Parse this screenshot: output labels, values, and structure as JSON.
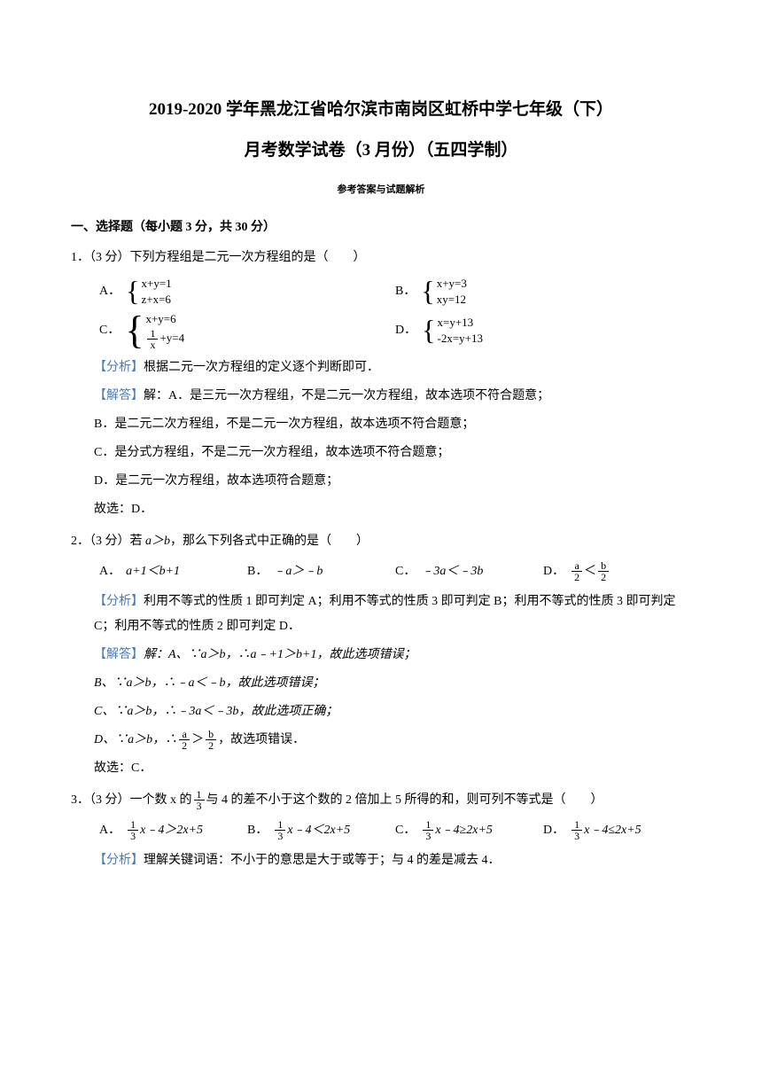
{
  "title": {
    "line1": "2019-2020 学年黑龙江省哈尔滨市南岗区虹桥中学七年级（下）",
    "line2": "月考数学试卷（3 月份）（五四学制）",
    "subtitle": "参考答案与试题解析"
  },
  "section1": {
    "header": "一、选择题（每小题 3 分，共 30 分）"
  },
  "q1": {
    "stem": "1．（3 分）下列方程组是二元一次方程组的是（　　）",
    "optA_label": "A．",
    "optA_eq1": "x+y=1",
    "optA_eq2": "z+x=6",
    "optB_label": "B．",
    "optB_eq1": "x+y=3",
    "optB_eq2": "xy=12",
    "optC_label": "C．",
    "optC_eq1": "x+y=6",
    "optC_eq2_suffix": "+y=4",
    "optD_label": "D．",
    "optD_eq1": "x=y+13",
    "optD_eq2": "-2x=y+13",
    "analysis_label": "【分析】",
    "analysis_text": "根据二元一次方程组的定义逐个判断即可．",
    "solve_label": "【解答】",
    "solve_text": "解：A．是三元一次方程组，不是二元一次方程组，故本选项不符合题意；",
    "line_b": "B．是二元二次方程组，不是二元一次方程组，故本选项不符合题意；",
    "line_c": "C．是分式方程组，不是二元一次方程组，故本选项不符合题意；",
    "line_d": "D．是二元一次方程组，故本选项符合题意；",
    "conclusion": "故选：D．"
  },
  "q2": {
    "stem_prefix": "2．（3 分）若 ",
    "stem_cond": "a＞b",
    "stem_suffix": "，那么下列各式中正确的是（　　）",
    "optA_label": "A．",
    "optA_text": "a+1＜b+1",
    "optB_label": "B．",
    "optB_text": "﹣a＞﹣b",
    "optC_label": "C．",
    "optC_text": "﹣3a＜﹣3b",
    "optD_label": "D．",
    "analysis_label": "【分析】",
    "analysis_text": "利用不等式的性质 1 即可判定 A；利用不等式的性质 3 即可判定 B；利用不等式的性质 3 即可判定 C；利用不等式的性质 2 即可判定 D．",
    "solve_label": "【解答】",
    "solve_text": "解：A、∵a＞b，∴a﹣+1＞b+1，故此选项错误；",
    "line_b": "B、∵a＞b，∴﹣a＜﹣b，故此选项错误；",
    "line_c": "C、∵a＞b，∴﹣3a＜﹣3b，故此选项正确；",
    "line_d_prefix": "D、∵a＞b，∴",
    "line_d_suffix": "，故选项错误．",
    "conclusion": "故选：C．"
  },
  "q3": {
    "stem_prefix": "3．（3 分）一个数 x 的",
    "stem_suffix": "与 4 的差不小于这个数的 2 倍加上 5 所得的和，则可列不等式是（　　）",
    "optA_label": "A．",
    "optA_suffix": "x﹣4＞2x+5",
    "optB_label": "B．",
    "optB_suffix": "x﹣4＜2x+5",
    "optC_label": "C．",
    "optC_suffix": "x﹣4≥2x+5",
    "optD_label": "D．",
    "optD_suffix": "x﹣4≤2x+5",
    "analysis_label": "【分析】",
    "analysis_text": "理解关键词语：不小于的意思是大于或等于；与 4 的差是减去 4．"
  },
  "frac_1": "1",
  "frac_x": "x",
  "frac_a": "a",
  "frac_b": "b",
  "frac_2": "2",
  "frac_3": "3"
}
